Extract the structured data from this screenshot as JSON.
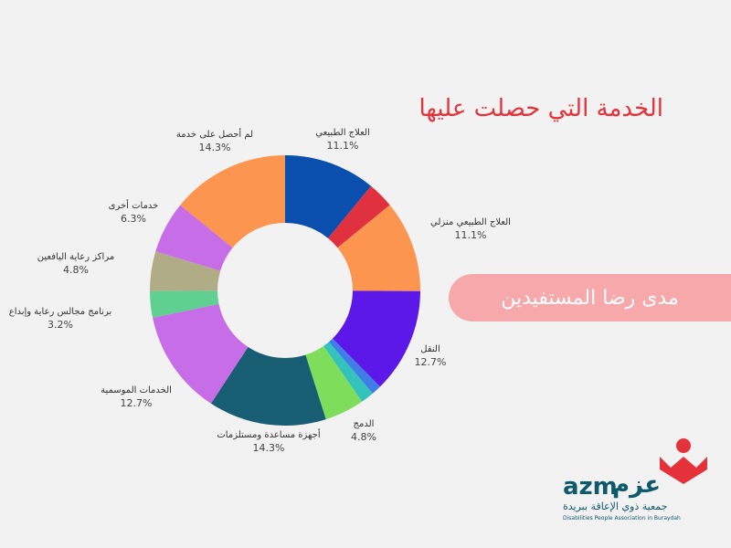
{
  "chart_data": {
    "type": "pie",
    "title": "الخدمة التي حصلت عليها",
    "slices": [
      {
        "label": "العلاج الطبيعي",
        "value": 11.1,
        "pct_label": "11.1%",
        "color": "#0b4fae"
      },
      {
        "label": "",
        "value": 3.2,
        "pct_label": "",
        "color": "#e0313f"
      },
      {
        "label": "العلاج الطبيعي منزلي",
        "value": 11.1,
        "pct_label": "11.1%",
        "color": "#fc9550"
      },
      {
        "label": "النقل",
        "value": 12.7,
        "pct_label": "12.7%",
        "color": "#5b18e9"
      },
      {
        "label": "",
        "value": 1.2,
        "pct_label": "",
        "color": "#3e7ee6"
      },
      {
        "label": "",
        "value": 1.6,
        "pct_label": "",
        "color": "#33c3bc"
      },
      {
        "label": "الدمج",
        "value": 4.8,
        "pct_label": "4.8%",
        "color": "#7ede5b"
      },
      {
        "label": "أجهزة مساعدة ومستلزمات",
        "value": 14.3,
        "pct_label": "14.3%",
        "color": "#185e72"
      },
      {
        "label": "الخدمات الموسمية",
        "value": 12.7,
        "pct_label": "12.7%",
        "color": "#c86de8"
      },
      {
        "label": "برنامج مجالس رعاية وإبداع",
        "value": 3.2,
        "pct_label": "3.2%",
        "color": "#5fd08f"
      },
      {
        "label": "مراكز رعاية اليافعين",
        "value": 4.8,
        "pct_label": "4.8%",
        "color": "#b0ad86"
      },
      {
        "label": "خدمات أخرى",
        "value": 6.3,
        "pct_label": "6.3%",
        "color": "#c86de8"
      },
      {
        "label": "لم أحصل على خدمة",
        "value": 14.3,
        "pct_label": "14.3%",
        "color": "#fc9550"
      }
    ]
  },
  "satisfaction_button": {
    "label": "مدى رضا المستفيدين"
  },
  "logo": {
    "latin": "azm",
    "arabic_name": "عزم",
    "arabic_sub": "جمعية ذوي الإعاقة ببريدة",
    "english_sub": "Disabilities People Association in Buraydah",
    "mark_color": "#e5323a"
  }
}
